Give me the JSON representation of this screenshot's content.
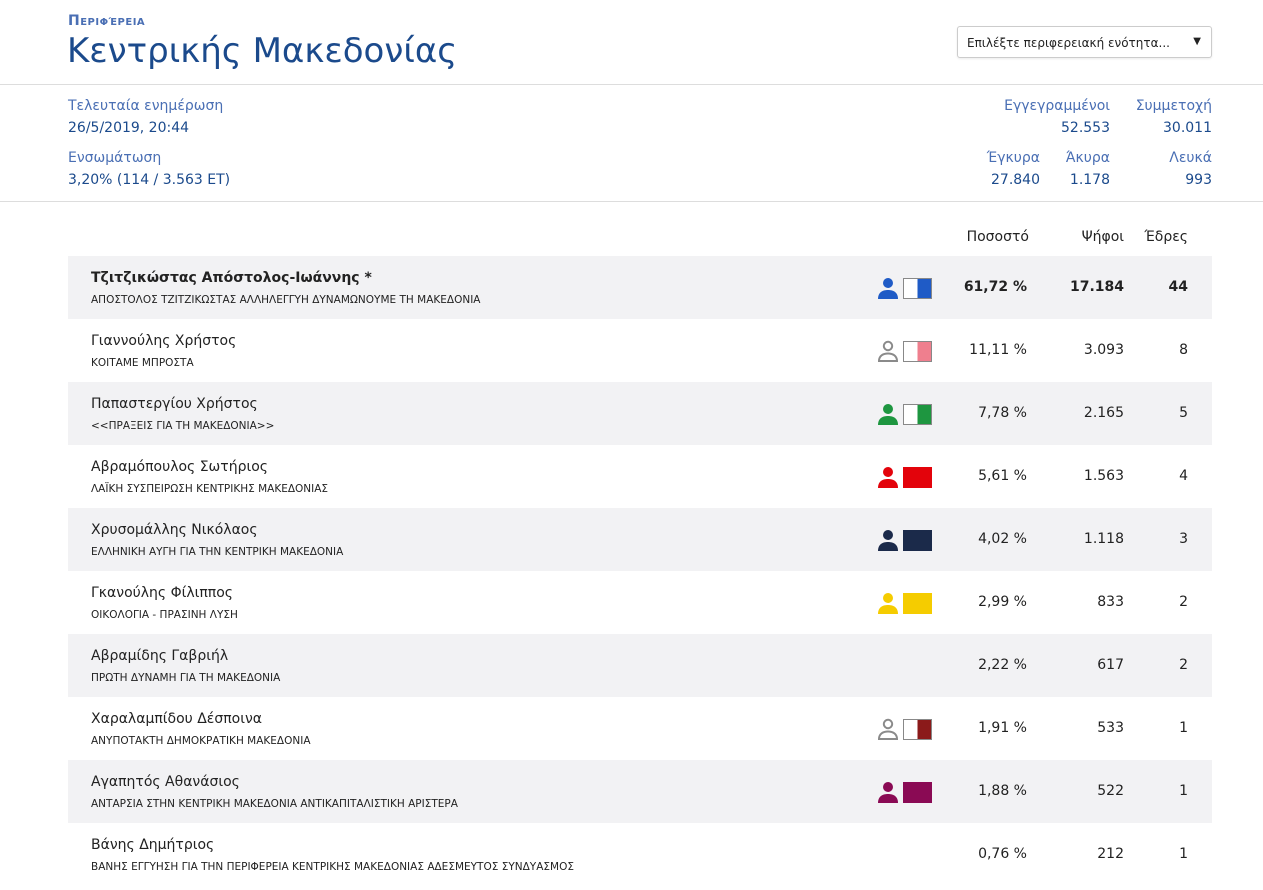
{
  "header": {
    "kicker": "Περιφέρεια",
    "title": "Κεντρικής Μακεδονίας",
    "select_value": "Επιλέξτε περιφερειακή ενότητα...",
    "select_caret": "▼"
  },
  "stats": {
    "last_update_label": "Τελευταία ενημέρωση",
    "last_update_value": "26/5/2019, 20:44",
    "integration_label": "Ενσωμάτωση",
    "integration_value": "3,20% (114 / 3.563 ΕΤ)",
    "registered_label": "Εγγεγραμμένοι",
    "registered_value": "52.553",
    "turnout_label": "Συμμετοχή",
    "turnout_value": "30.011",
    "valid_label": "Έγκυρα",
    "valid_value": "27.840",
    "invalid_label": "Άκυρα",
    "invalid_value": "1.178",
    "blank_label": "Λευκά",
    "blank_value": "993"
  },
  "table": {
    "headers": {
      "percent": "Ποσοστό",
      "votes": "Ψήφοι",
      "seats": "Έδρες"
    },
    "rows": [
      {
        "candidate": "Τζιτζικώστας Απόστολος-Ιωάννης *",
        "party": "ΑΠΟΣΤΟΛΟΣ ΤΖΙΤΖΙΚΩΣΤΑΣ ΑΛΛΗΛΕΓΓΥΗ ΔΥΝΑΜΩΝΟΥΜΕ ΤΗ ΜΑΚΕΔΟΝΙΑ",
        "percent": "61,72 %",
        "votes": "17.184",
        "seats": "44",
        "color": "#1f5bc6",
        "icon": "person-icon",
        "fill": "half",
        "bold": true
      },
      {
        "candidate": "Γιαννούλης Χρήστος",
        "party": "ΚΟΙΤΑΜΕ ΜΠΡΟΣΤΑ",
        "percent": "11,11 %",
        "votes": "3.093",
        "seats": "8",
        "color": "#ef7f8e",
        "icon": "person-outline-icon",
        "fill": "half",
        "bold": false
      },
      {
        "candidate": "Παπαστεργίου Χρήστος",
        "party": "<<ΠΡΑΞΕΙΣ ΓΙΑ ΤΗ ΜΑΚΕΔΟΝΙΑ>>",
        "percent": "7,78 %",
        "votes": "2.165",
        "seats": "5",
        "color": "#1e9640",
        "icon": "person-icon",
        "fill": "half",
        "bold": false
      },
      {
        "candidate": "Αβραμόπουλος Σωτήριος",
        "party": "ΛΑΪΚΗ ΣΥΣΠΕΙΡΩΣΗ ΚΕΝΤΡΙΚΗΣ ΜΑΚΕΔΟΝΙΑΣ",
        "percent": "5,61 %",
        "votes": "1.563",
        "seats": "4",
        "color": "#e3030b",
        "icon": "person-icon",
        "fill": "full",
        "bold": false
      },
      {
        "candidate": "Χρυσομάλλης Νικόλαος",
        "party": "ΕΛΛΗΝΙΚΗ ΑΥΓΗ ΓΙΑ ΤΗΝ ΚΕΝΤΡΙΚΗ ΜΑΚΕΔΟΝΙΑ",
        "percent": "4,02 %",
        "votes": "1.118",
        "seats": "3",
        "color": "#1b2a4a",
        "icon": "person-icon",
        "fill": "full",
        "bold": false
      },
      {
        "candidate": "Γκανούλης Φίλιππος",
        "party": "ΟΙΚΟΛΟΓΙΑ - ΠΡΑΣΙΝΗ ΛΥΣΗ",
        "percent": "2,99 %",
        "votes": "833",
        "seats": "2",
        "color": "#f5cc00",
        "icon": "person-icon",
        "fill": "full",
        "bold": false
      },
      {
        "candidate": "Αβραμίδης Γαβριήλ",
        "party": "ΠΡΩΤΗ ΔΥΝΑΜΗ ΓΙΑ ΤΗ ΜΑΚΕΔΟΝΙΑ",
        "percent": "2,22 %",
        "votes": "617",
        "seats": "2",
        "color": "",
        "icon": "",
        "fill": "none",
        "bold": false
      },
      {
        "candidate": "Χαραλαμπίδου Δέσποινα",
        "party": "ΑΝΥΠΟΤΑΚΤΗ ΔΗΜΟΚΡΑΤΙΚΗ ΜΑΚΕΔΟΝΙΑ",
        "percent": "1,91 %",
        "votes": "533",
        "seats": "1",
        "color": "#8b1a1a",
        "icon": "person-outline-icon",
        "fill": "half",
        "bold": false
      },
      {
        "candidate": "Αγαπητός Αθανάσιος",
        "party": "ΑΝΤΑΡΣΙΑ ΣΤΗΝ ΚΕΝΤΡΙΚΗ ΜΑΚΕΔΟΝΙΑ ΑΝΤΙΚΑΠΙΤΑΛΙΣΤΙΚΗ ΑΡΙΣΤΕΡΑ",
        "percent": "1,88 %",
        "votes": "522",
        "seats": "1",
        "color": "#8a0a54",
        "icon": "person-icon",
        "fill": "full",
        "bold": false
      },
      {
        "candidate": "Βάνης Δημήτριος",
        "party": "ΒΑΝΗΣ ΕΓΓΥΗΣΗ ΓΙΑ ΤΗΝ ΠΕΡΙΦΕΡΕΙΑ ΚΕΝΤΡΙΚΗΣ ΜΑΚΕΔΟΝΙΑΣ ΑΔΕΣΜΕΥΤΟΣ ΣΥΝΔΥΑΣΜΟΣ",
        "percent": "0,76 %",
        "votes": "212",
        "seats": "1",
        "color": "",
        "icon": "",
        "fill": "none",
        "bold": false
      }
    ]
  }
}
